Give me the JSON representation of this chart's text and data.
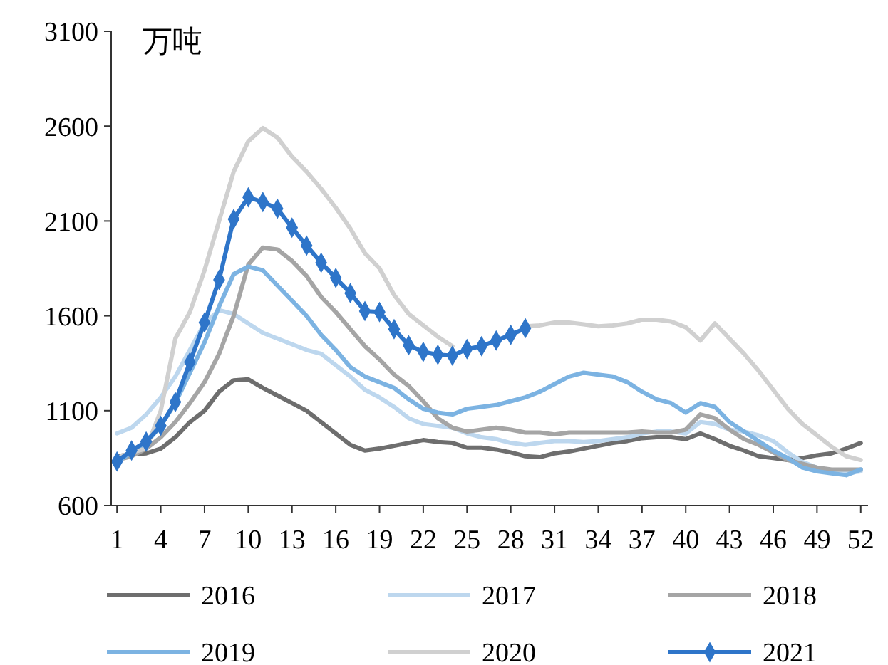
{
  "chart_data": {
    "type": "line",
    "ylabel": "万吨",
    "x": [
      1,
      2,
      3,
      4,
      5,
      6,
      7,
      8,
      9,
      10,
      11,
      12,
      13,
      14,
      15,
      16,
      17,
      18,
      19,
      20,
      21,
      22,
      23,
      24,
      25,
      26,
      27,
      28,
      29,
      30,
      31,
      32,
      33,
      34,
      35,
      36,
      37,
      38,
      39,
      40,
      41,
      42,
      43,
      44,
      45,
      46,
      47,
      48,
      49,
      50,
      51,
      52
    ],
    "xlim": [
      0.6,
      52.5
    ],
    "xticks": [
      1,
      4,
      7,
      10,
      13,
      16,
      19,
      22,
      25,
      28,
      31,
      34,
      37,
      40,
      43,
      46,
      49,
      52
    ],
    "ylim": [
      600,
      3100
    ],
    "yticks": [
      600,
      1100,
      1600,
      2100,
      2600,
      3100
    ],
    "grid": false,
    "legend": "bottom",
    "series": [
      {
        "name": "2016",
        "color": "#6e6e6e",
        "values": [
          860,
          870,
          875,
          900,
          960,
          1040,
          1100,
          1200,
          1260,
          1265,
          1220,
          1180,
          1140,
          1100,
          1040,
          980,
          920,
          890,
          900,
          915,
          930,
          945,
          935,
          930,
          905,
          905,
          895,
          880,
          860,
          855,
          875,
          885,
          900,
          915,
          930,
          940,
          955,
          960,
          960,
          950,
          980,
          950,
          915,
          890,
          860,
          850,
          840,
          850,
          865,
          875,
          900,
          930
        ]
      },
      {
        "name": "2017",
        "color": "#bdd7ee",
        "values": [
          980,
          1010,
          1080,
          1170,
          1280,
          1420,
          1560,
          1630,
          1610,
          1560,
          1510,
          1480,
          1450,
          1420,
          1400,
          1340,
          1280,
          1210,
          1170,
          1120,
          1060,
          1030,
          1020,
          1010,
          980,
          960,
          950,
          930,
          920,
          930,
          940,
          940,
          935,
          940,
          950,
          960,
          980,
          990,
          990,
          980,
          1040,
          1030,
          1000,
          990,
          970,
          940,
          880,
          830,
          800,
          780,
          770,
          780
        ]
      },
      {
        "name": "2018",
        "color": "#a5a5a5",
        "values": [
          840,
          860,
          900,
          960,
          1040,
          1140,
          1250,
          1400,
          1600,
          1870,
          1960,
          1950,
          1890,
          1810,
          1700,
          1620,
          1530,
          1440,
          1370,
          1290,
          1230,
          1150,
          1060,
          1010,
          990,
          1000,
          1010,
          1000,
          985,
          985,
          975,
          985,
          985,
          985,
          985,
          985,
          990,
          985,
          985,
          1000,
          1080,
          1060,
          1000,
          950,
          920,
          880,
          840,
          820,
          800,
          790,
          790,
          790
        ]
      },
      {
        "name": "2019",
        "color": "#7cb3e2",
        "values": [
          830,
          880,
          930,
          1020,
          1140,
          1300,
          1460,
          1650,
          1820,
          1860,
          1840,
          1760,
          1680,
          1600,
          1500,
          1420,
          1330,
          1280,
          1250,
          1220,
          1160,
          1110,
          1090,
          1080,
          1110,
          1120,
          1130,
          1150,
          1170,
          1200,
          1240,
          1280,
          1300,
          1290,
          1280,
          1250,
          1200,
          1160,
          1140,
          1090,
          1140,
          1120,
          1040,
          990,
          940,
          890,
          850,
          800,
          780,
          770,
          760,
          790
        ]
      },
      {
        "name": "2020",
        "color": "#d0d0d0",
        "values": [
          850,
          880,
          900,
          1100,
          1480,
          1620,
          1840,
          2100,
          2360,
          2520,
          2590,
          2540,
          2440,
          2360,
          2270,
          2170,
          2060,
          1930,
          1850,
          1710,
          1610,
          1550,
          1490,
          1440,
          null,
          null,
          null,
          null,
          1545,
          1550,
          1565,
          1565,
          1555,
          1545,
          1550,
          1560,
          1580,
          1580,
          1570,
          1540,
          1470,
          1560,
          1480,
          1400,
          1310,
          1210,
          1110,
          1030,
          970,
          910,
          860,
          840
        ]
      },
      {
        "name": "2021",
        "color": "#2e75c9",
        "marker": "diamond",
        "values": [
          832,
          890,
          937,
          1020,
          1146,
          1356,
          1565,
          1790,
          2110,
          2225,
          2200,
          2165,
          2065,
          1970,
          1880,
          1800,
          1720,
          1625,
          1620,
          1530,
          1445,
          1410,
          1395,
          1390,
          1425,
          1440,
          1470,
          1500,
          1535,
          null,
          null,
          null,
          null,
          null,
          null,
          null,
          null,
          null,
          null,
          null,
          null,
          null,
          null,
          null,
          null,
          null,
          null,
          null,
          null,
          null,
          null,
          null
        ]
      }
    ]
  }
}
